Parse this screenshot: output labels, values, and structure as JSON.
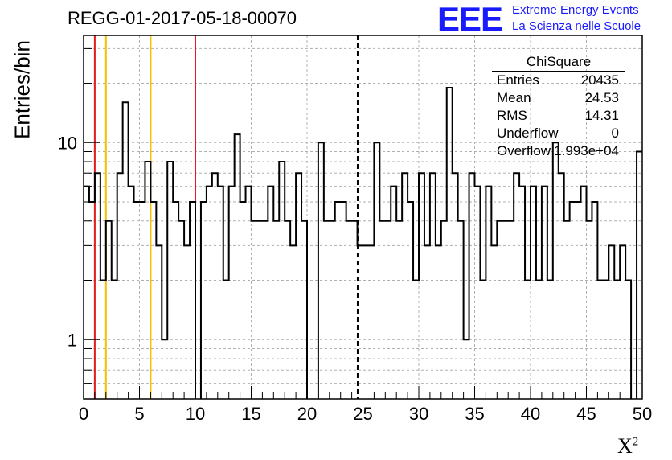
{
  "header": {
    "run_title": "REGG-01-2017-05-18-00070",
    "logo_text": "EEE",
    "brand_line1": "Extreme Energy Events",
    "brand_line2": "La Scienza nelle Scuole"
  },
  "stats_box": {
    "title": "ChiSquare",
    "rows": [
      {
        "key": "Entries",
        "value": "20435"
      },
      {
        "key": "Mean",
        "value": "24.53"
      },
      {
        "key": "RMS",
        "value": "14.31"
      },
      {
        "key": "Underflow",
        "value": "0"
      },
      {
        "key": "Overflow",
        "value": "1.993e+04"
      }
    ]
  },
  "chart_data": {
    "type": "histogram",
    "xlabel": "X",
    "xlabel_sup": "2",
    "ylabel": "Entries/bin",
    "xlim": [
      0,
      50
    ],
    "ylim": [
      0.5,
      35
    ],
    "yscale": "log",
    "grid": true,
    "bin_width": 0.5,
    "x_ticks": [
      0,
      5,
      10,
      15,
      20,
      25,
      30,
      35,
      40,
      45,
      50
    ],
    "y_ticks": [
      1,
      10
    ],
    "bin_contents": [
      6,
      5,
      7,
      2,
      4,
      2,
      7,
      16,
      6,
      5,
      5,
      8,
      5,
      3,
      1,
      8,
      5,
      4,
      3,
      5,
      0,
      5,
      6,
      7,
      6,
      2,
      6,
      11,
      5,
      6,
      4,
      4,
      4,
      6,
      4,
      8,
      4,
      3,
      7,
      4,
      0,
      0,
      10,
      4,
      4,
      5,
      5,
      4,
      4,
      3,
      3,
      3,
      10,
      4,
      4,
      6,
      4,
      7,
      5,
      2,
      7,
      3,
      7,
      3,
      4,
      19,
      7,
      4,
      1,
      7,
      6,
      2,
      6,
      3,
      4,
      4,
      4,
      7,
      6,
      2,
      6,
      2,
      6,
      2,
      10,
      7,
      4,
      5,
      5,
      6,
      4,
      5,
      2,
      2,
      3,
      2,
      3,
      2,
      0,
      9
    ],
    "vertical_lines": [
      {
        "x": 1.0,
        "color": "#e41a1c",
        "style": "solid"
      },
      {
        "x": 2.0,
        "color": "#f5c000",
        "style": "solid"
      },
      {
        "x": 6.0,
        "color": "#f5c000",
        "style": "solid"
      },
      {
        "x": 10.0,
        "color": "#e41a1c",
        "style": "solid"
      },
      {
        "x": 24.53,
        "color": "#000000",
        "style": "dashed"
      }
    ],
    "histogram_color": "#000000"
  }
}
